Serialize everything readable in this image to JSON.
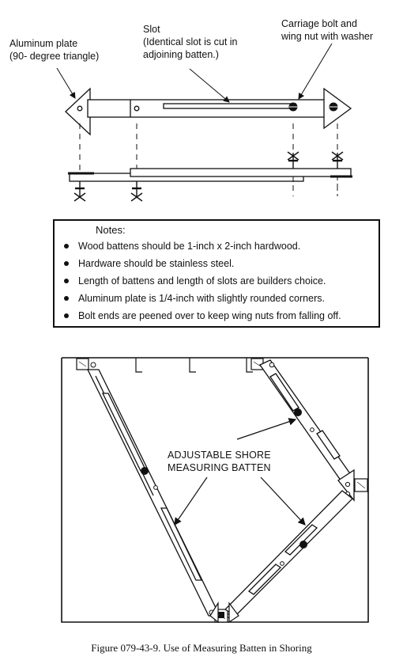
{
  "labels": {
    "aluminum_plate_line1": "Aluminum plate",
    "aluminum_plate_line2": "(90- degree triangle)",
    "slot_line1": "Slot",
    "slot_line2": "(Identical slot is cut in",
    "slot_line3": "adjoining batten.)",
    "bolt_line1": "Carriage bolt and",
    "bolt_line2": "wing nut with washer"
  },
  "notes": {
    "title": "Notes:",
    "items": [
      "Wood battens should be 1-inch x 2-inch hardwood.",
      "Hardware should be stainless steel.",
      "Length of battens and length of slots are builders choice.",
      "Aluminum plate is 1/4-inch with slightly rounded corners.",
      "Bolt ends are peened over to keep wing nuts from falling off."
    ]
  },
  "callout": {
    "line1": "ADJUSTABLE SHORE",
    "line2": "MEASURING BATTEN"
  },
  "caption": "Figure 079-43-9.  Use of Measuring Batten in Shoring"
}
